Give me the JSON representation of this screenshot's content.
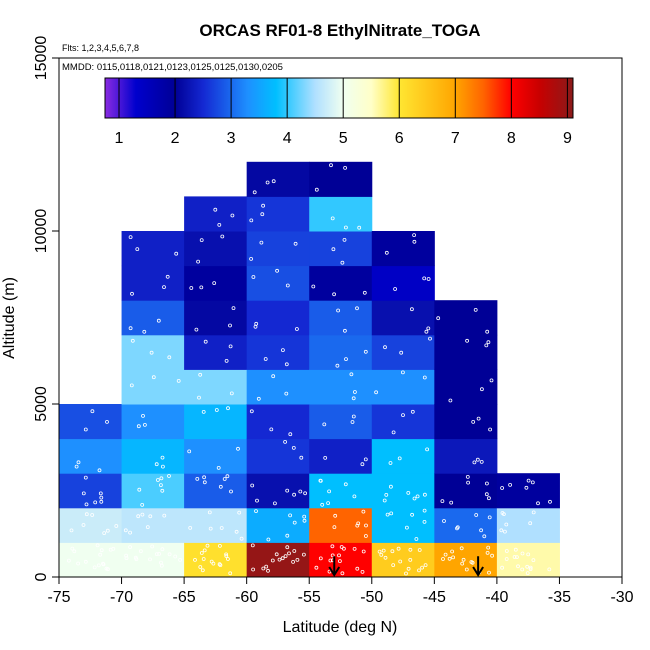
{
  "chart_data": {
    "type": "heatmap",
    "title": "ORCAS RF01-8 EthylNitrate_TOGA",
    "subtitle_flights": "Flts: 1,2,3,4,5,6,7,8",
    "subtitle_dates": "MMDD: 0115,0118,0121,0123,0125,0125,0130,0205",
    "xlabel": "Latitude (deg N)",
    "ylabel": "Altitude (m)",
    "xlim": [
      -75,
      -30
    ],
    "ylim": [
      0,
      15000
    ],
    "x_ticks": [
      -75,
      -70,
      -65,
      -60,
      -55,
      -50,
      -45,
      -40,
      -35,
      -30
    ],
    "x_tick_labels": [
      "-75",
      "-70",
      "-65",
      "-60",
      "-55",
      "-50",
      "-45",
      "-40",
      "-35",
      "-30"
    ],
    "y_ticks": [
      0,
      5000,
      10000,
      15000
    ],
    "y_tick_labels": [
      "0",
      "5000",
      "10000",
      "15000"
    ],
    "colorbar": {
      "range": [
        0.75,
        9.1
      ],
      "ticks": [
        1,
        2,
        3,
        4,
        5,
        6,
        7,
        8,
        9
      ],
      "tick_labels": [
        "1",
        "2",
        "3",
        "4",
        "5",
        "6",
        "7",
        "8",
        "9"
      ],
      "stops": [
        {
          "value": 0.75,
          "color": "#8a2be2"
        },
        {
          "value": 1.3,
          "color": "#0000cd"
        },
        {
          "value": 2.0,
          "color": "#000096"
        },
        {
          "value": 2.5,
          "color": "#1428d2"
        },
        {
          "value": 3.3,
          "color": "#1e90ff"
        },
        {
          "value": 3.8,
          "color": "#00bfff"
        },
        {
          "value": 4.5,
          "color": "#b0e0ff"
        },
        {
          "value": 5.0,
          "color": "#f0fff0"
        },
        {
          "value": 5.5,
          "color": "#ffffc8"
        },
        {
          "value": 6.0,
          "color": "#ffe632"
        },
        {
          "value": 7.0,
          "color": "#ffa500"
        },
        {
          "value": 7.5,
          "color": "#ff6400"
        },
        {
          "value": 8.0,
          "color": "#ff0000"
        },
        {
          "value": 8.5,
          "color": "#c80000"
        },
        {
          "value": 9.1,
          "color": "#8b1a1a"
        }
      ]
    },
    "bin_width_deg": 5,
    "bin_height_m": 1000,
    "cells": [
      {
        "lat": -75,
        "alt": 0,
        "value": 5.0
      },
      {
        "lat": -75,
        "alt": 1000,
        "value": 4.7
      },
      {
        "lat": -75,
        "alt": 2000,
        "value": 2.7
      },
      {
        "lat": -75,
        "alt": 3000,
        "value": 3.3
      },
      {
        "lat": -75,
        "alt": 4000,
        "value": 2.8
      },
      {
        "lat": -70,
        "alt": 0,
        "value": 5.0
      },
      {
        "lat": -70,
        "alt": 1000,
        "value": 4.6
      },
      {
        "lat": -70,
        "alt": 2000,
        "value": 4.1
      },
      {
        "lat": -70,
        "alt": 3000,
        "value": 3.7
      },
      {
        "lat": -70,
        "alt": 4000,
        "value": 3.3
      },
      {
        "lat": -70,
        "alt": 5000,
        "value": 4.3
      },
      {
        "lat": -70,
        "alt": 6000,
        "value": 4.3
      },
      {
        "lat": -70,
        "alt": 7000,
        "value": 2.9
      },
      {
        "lat": -70,
        "alt": 8000,
        "value": 2.4
      },
      {
        "lat": -70,
        "alt": 9000,
        "value": 2.4
      },
      {
        "lat": -65,
        "alt": 0,
        "value": 6.1
      },
      {
        "lat": -65,
        "alt": 1000,
        "value": 4.6
      },
      {
        "lat": -65,
        "alt": 2000,
        "value": 2.9
      },
      {
        "lat": -65,
        "alt": 3000,
        "value": 3.3
      },
      {
        "lat": -65,
        "alt": 4000,
        "value": 3.7
      },
      {
        "lat": -65,
        "alt": 5000,
        "value": 4.3
      },
      {
        "lat": -65,
        "alt": 6000,
        "value": 2.4
      },
      {
        "lat": -65,
        "alt": 7000,
        "value": 2.1
      },
      {
        "lat": -65,
        "alt": 8000,
        "value": 1.9
      },
      {
        "lat": -65,
        "alt": 9000,
        "value": 2.2
      },
      {
        "lat": -65,
        "alt": 10000,
        "value": 2.4
      },
      {
        "lat": -60,
        "alt": 0,
        "value": 9.0
      },
      {
        "lat": -60,
        "alt": 1000,
        "value": 3.6
      },
      {
        "lat": -60,
        "alt": 2000,
        "value": 2.2
      },
      {
        "lat": -60,
        "alt": 3000,
        "value": 2.6
      },
      {
        "lat": -60,
        "alt": 4000,
        "value": 2.5
      },
      {
        "lat": -60,
        "alt": 5000,
        "value": 3.3
      },
      {
        "lat": -60,
        "alt": 6000,
        "value": 2.6
      },
      {
        "lat": -60,
        "alt": 7000,
        "value": 2.5
      },
      {
        "lat": -60,
        "alt": 8000,
        "value": 2.8
      },
      {
        "lat": -60,
        "alt": 9000,
        "value": 2.7
      },
      {
        "lat": -60,
        "alt": 10000,
        "value": 2.6
      },
      {
        "lat": -60,
        "alt": 11000,
        "value": 2.1
      },
      {
        "lat": -55,
        "alt": 0,
        "value": 8.0
      },
      {
        "lat": -55,
        "alt": 1000,
        "value": 7.5
      },
      {
        "lat": -55,
        "alt": 2000,
        "value": 3.8
      },
      {
        "lat": -55,
        "alt": 3000,
        "value": 2.4
      },
      {
        "lat": -55,
        "alt": 4000,
        "value": 2.9
      },
      {
        "lat": -55,
        "alt": 5000,
        "value": 3.3
      },
      {
        "lat": -55,
        "alt": 6000,
        "value": 3.0
      },
      {
        "lat": -55,
        "alt": 7000,
        "value": 2.9
      },
      {
        "lat": -55,
        "alt": 8000,
        "value": 1.9
      },
      {
        "lat": -55,
        "alt": 9000,
        "value": 2.7
      },
      {
        "lat": -55,
        "alt": 10000,
        "value": 4.0
      },
      {
        "lat": -55,
        "alt": 11000,
        "value": 2.0
      },
      {
        "lat": -50,
        "alt": 0,
        "value": 6.4
      },
      {
        "lat": -50,
        "alt": 1000,
        "value": 3.8
      },
      {
        "lat": -50,
        "alt": 2000,
        "value": 3.8
      },
      {
        "lat": -50,
        "alt": 3000,
        "value": 3.8
      },
      {
        "lat": -50,
        "alt": 4000,
        "value": 2.6
      },
      {
        "lat": -50,
        "alt": 5000,
        "value": 3.3
      },
      {
        "lat": -50,
        "alt": 6000,
        "value": 2.7
      },
      {
        "lat": -50,
        "alt": 7000,
        "value": 2.2
      },
      {
        "lat": -50,
        "alt": 8000,
        "value": 1.4
      },
      {
        "lat": -50,
        "alt": 9000,
        "value": 1.9
      },
      {
        "lat": -45,
        "alt": 0,
        "value": 7.0
      },
      {
        "lat": -45,
        "alt": 1000,
        "value": 3.0
      },
      {
        "lat": -45,
        "alt": 2000,
        "value": 2.0
      },
      {
        "lat": -45,
        "alt": 3000,
        "value": 2.3
      },
      {
        "lat": -45,
        "alt": 4000,
        "value": 2.0
      },
      {
        "lat": -45,
        "alt": 5000,
        "value": 2.0
      },
      {
        "lat": -45,
        "alt": 6000,
        "value": 2.0
      },
      {
        "lat": -45,
        "alt": 7000,
        "value": 2.0
      },
      {
        "lat": -40,
        "alt": 0,
        "value": 5.6
      },
      {
        "lat": -40,
        "alt": 1000,
        "value": 4.5
      },
      {
        "lat": -40,
        "alt": 2000,
        "value": 1.9
      }
    ],
    "arrows": [
      {
        "lat": -53,
        "alt_top": 600,
        "alt_bottom": 0
      },
      {
        "lat": -41.5,
        "alt_top": 600,
        "alt_bottom": 0
      }
    ]
  }
}
